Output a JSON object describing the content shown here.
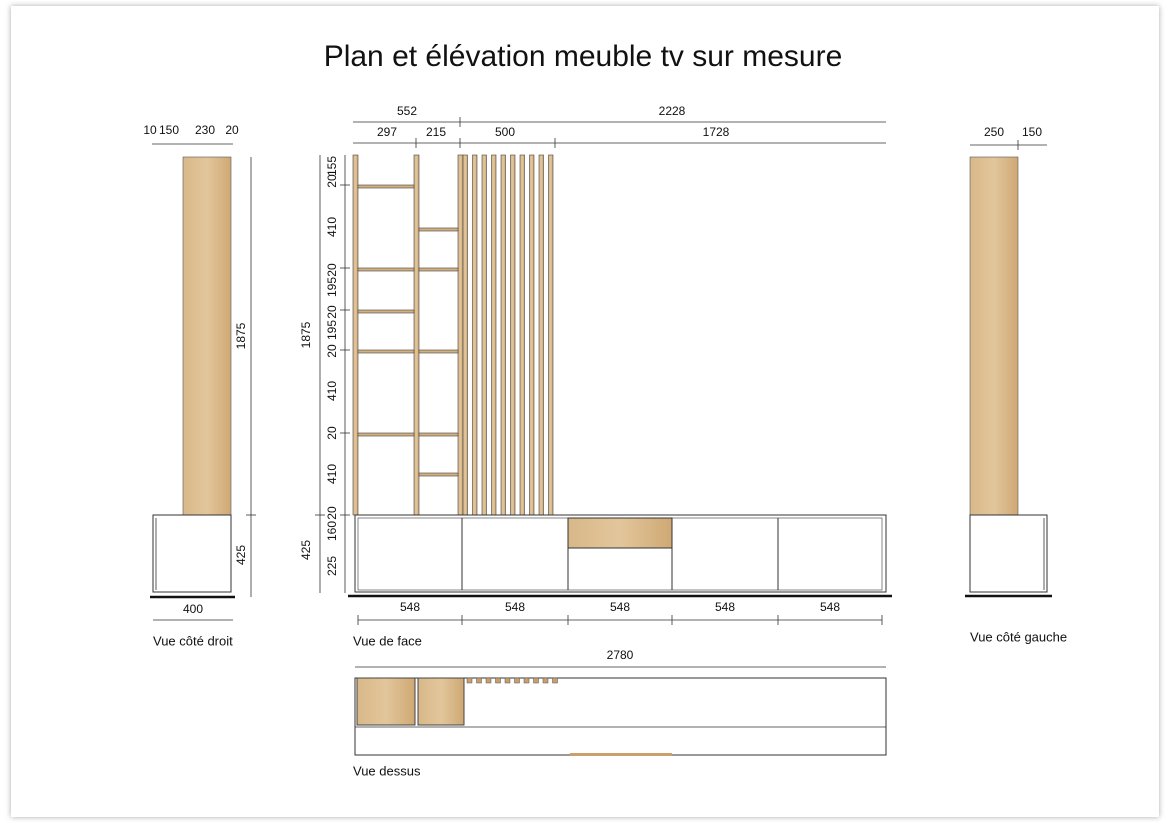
{
  "title": "Plan et élévation meuble tv sur mesure",
  "right_side_view": {
    "label": "Vue côté droit",
    "top_widths": [
      10,
      150,
      230,
      20
    ],
    "heights": [
      1875,
      425
    ],
    "depth": 400
  },
  "front_view": {
    "label": "Vue de face",
    "overall_widths": [
      552,
      2228
    ],
    "section_widths": [
      297,
      215,
      500,
      1728
    ],
    "shelf_heights": [
      155,
      20,
      410,
      20,
      195,
      20,
      195,
      20,
      410,
      20,
      410,
      20,
      160,
      225
    ],
    "total_heights": [
      1875,
      425
    ],
    "door_widths": [
      548,
      548,
      548,
      548,
      548
    ]
  },
  "top_view": {
    "label": "Vue dessus",
    "width": 2780
  },
  "left_side_view": {
    "label": "Vue côté gauche",
    "top_widths": [
      250,
      150
    ]
  }
}
